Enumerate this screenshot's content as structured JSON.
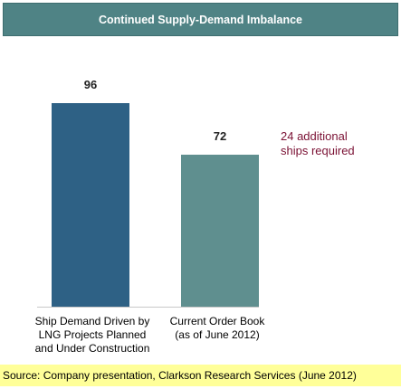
{
  "header": {
    "title": "Continued Supply-Demand Imbalance"
  },
  "chart_data": {
    "type": "bar",
    "categories": [
      "Ship Demand Driven by\nLNG Projects Planned\nand Under Construction",
      "Current Order Book\n(as of June 2012)"
    ],
    "values": [
      96,
      72
    ],
    "data_labels": [
      "96",
      "72"
    ],
    "colors": [
      "#2e6185",
      "#5f8f8f"
    ],
    "annotation": "24 additional\nships required",
    "ylim": [
      0,
      100
    ],
    "grid": false,
    "legend": "none"
  },
  "footer": {
    "source": "Source: Company presentation, Clarkson Research Services (June 2012)"
  }
}
